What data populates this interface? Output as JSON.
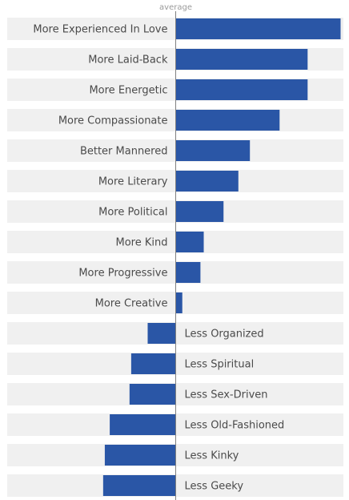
{
  "chart_data": {
    "type": "bar",
    "orientation": "horizontal",
    "baseline_label": "average",
    "categories": [
      "More Experienced In Love",
      "More Laid-Back",
      "More Energetic",
      "More Compassionate",
      "Better Mannered",
      "More Literary",
      "More Political",
      "More Kind",
      "More Progressive",
      "More Creative",
      "Less Organized",
      "Less Spiritual",
      "Less Sex-Driven",
      "Less Old-Fashioned",
      "Less Kinky",
      "Less Geeky"
    ],
    "values": [
      100,
      80,
      80,
      63,
      45,
      38,
      29,
      17,
      15,
      4,
      -17,
      -27,
      -28,
      -40,
      -43,
      -44
    ],
    "xlim": [
      -100,
      100
    ],
    "bar_color": "#2a56a6",
    "row_color": "#f0f0f0",
    "grid": false,
    "legend": "none"
  }
}
